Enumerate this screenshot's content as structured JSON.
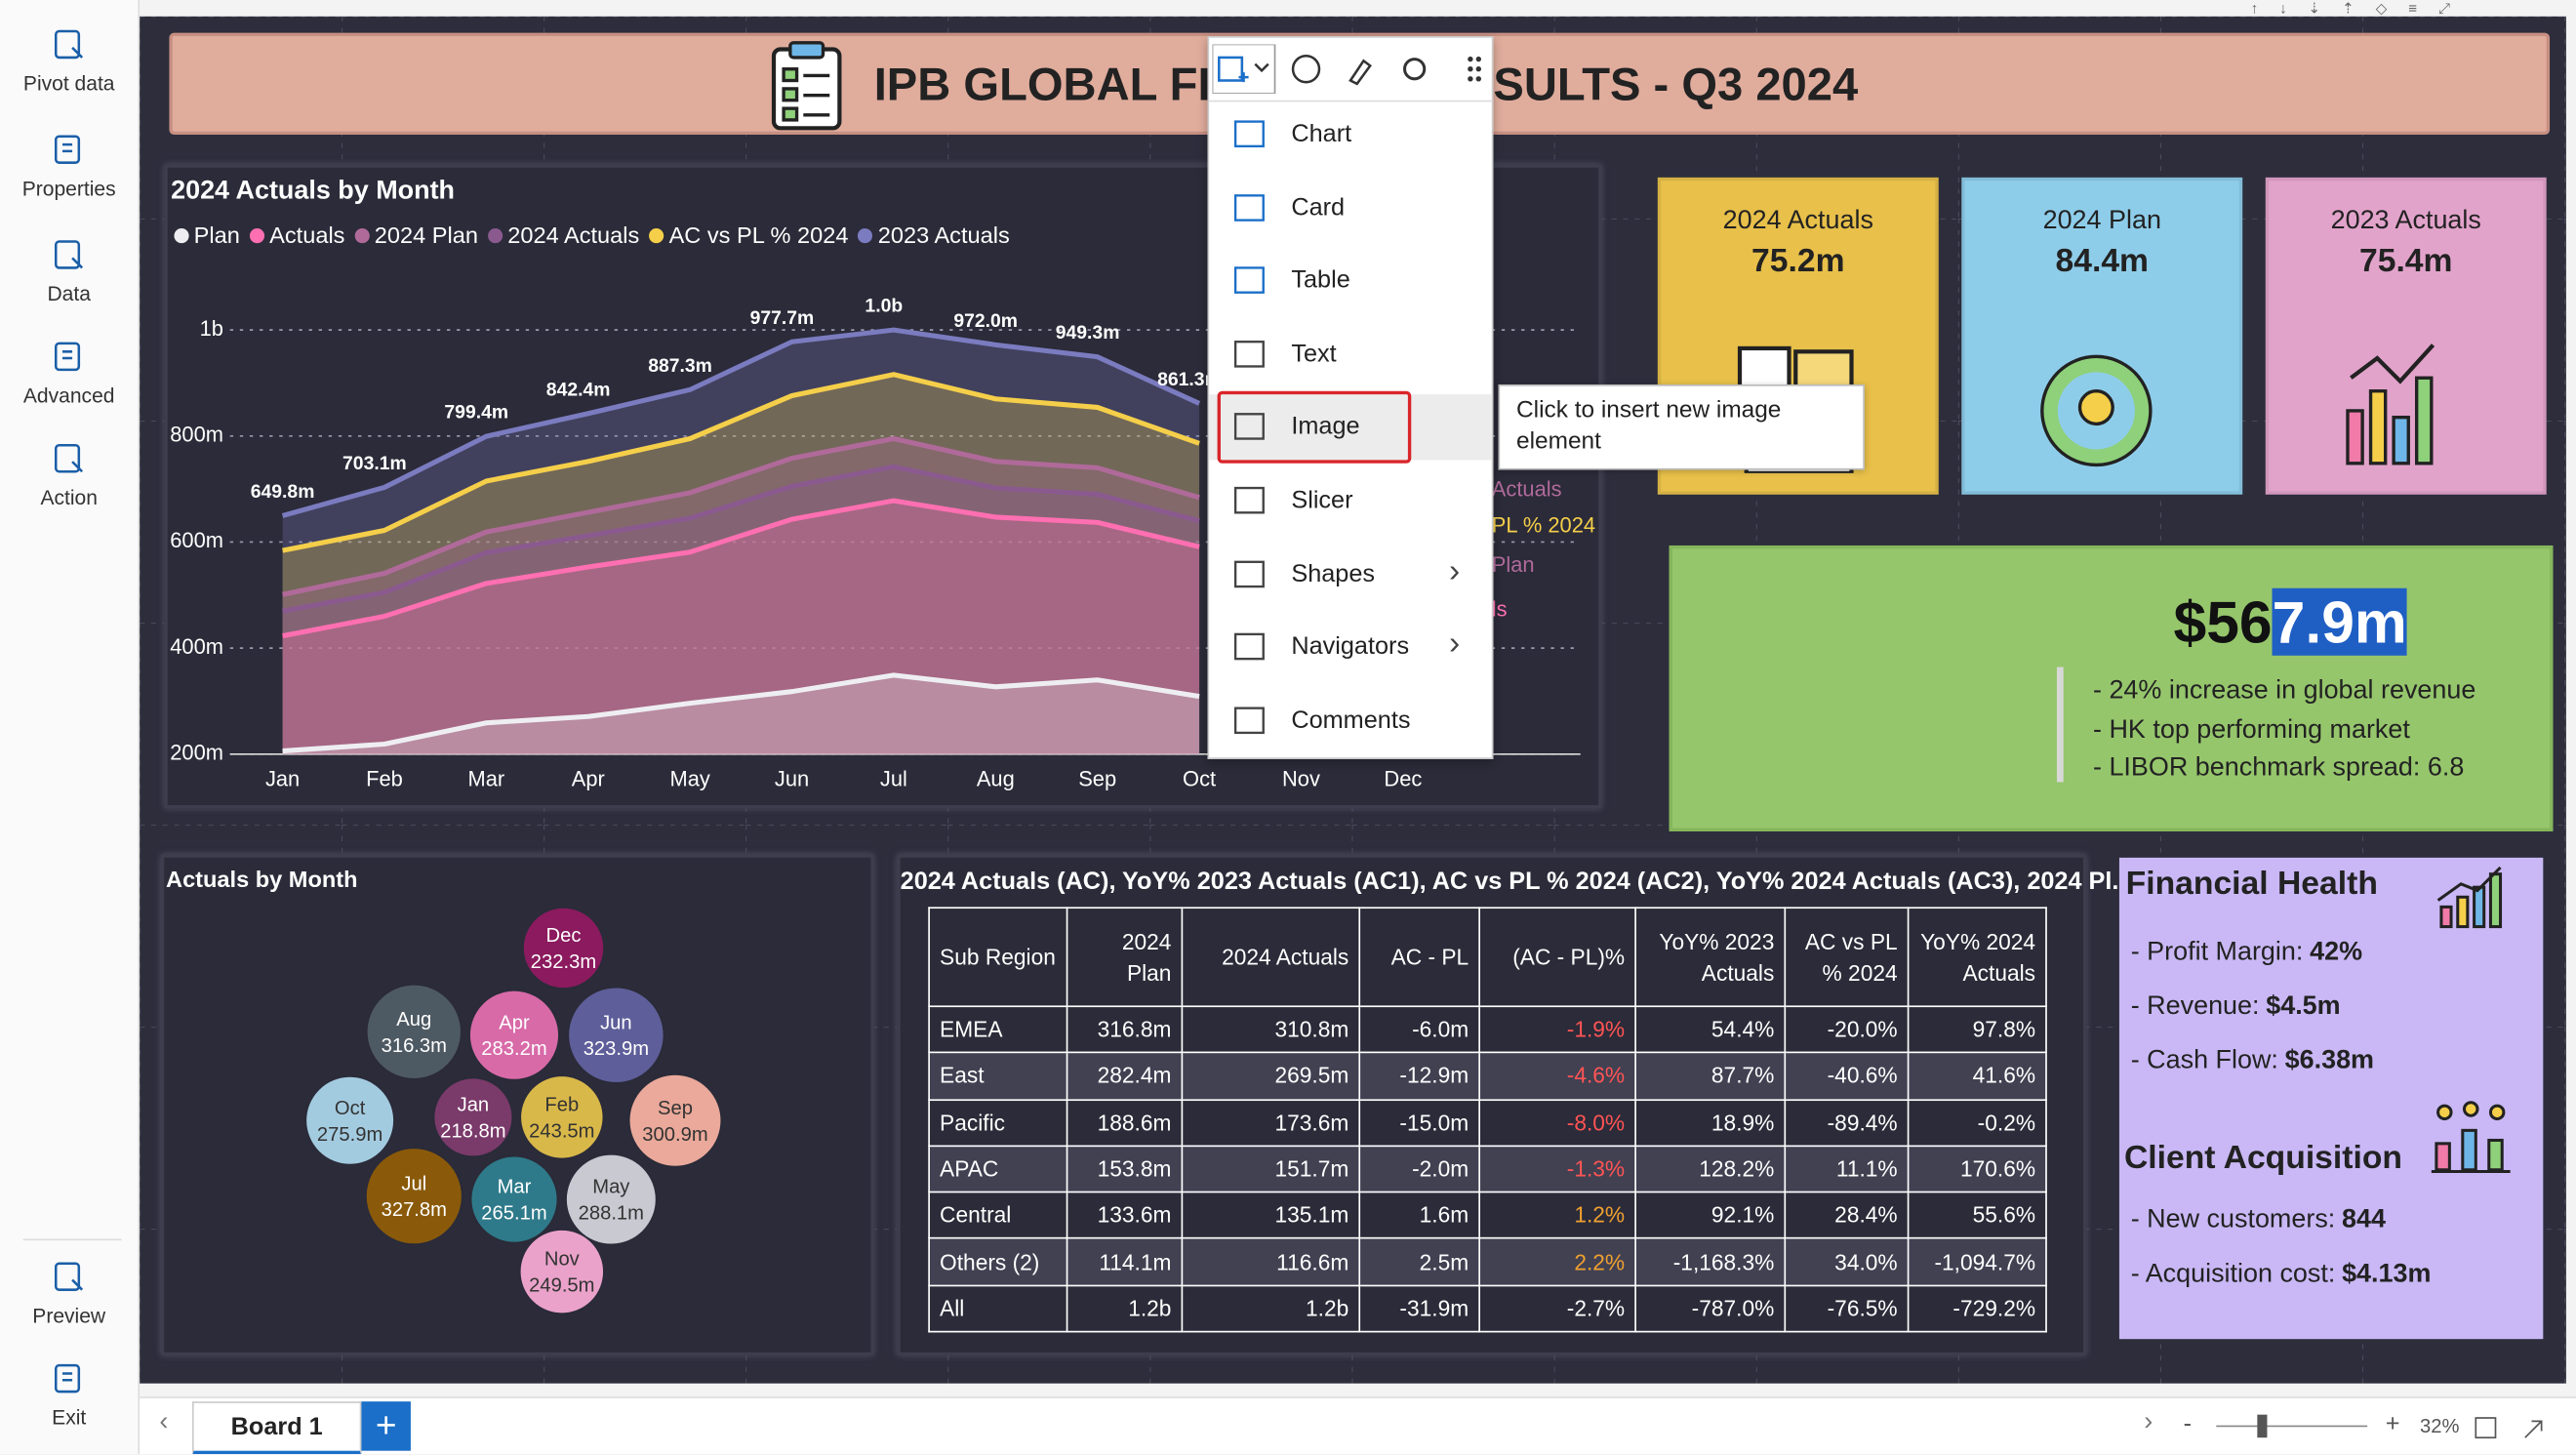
{
  "sidebar": {
    "top": [
      "Pivot data",
      "Properties",
      "Data",
      "Advanced",
      "Action"
    ],
    "bottom": [
      "Preview",
      "Exit"
    ]
  },
  "header": {
    "title": "IPB GLOBAL FINANCIAL RESULTS - Q3 2024"
  },
  "line_chart": {
    "type": "line",
    "title": "2024 Actuals by Month",
    "categories": [
      "Jan",
      "Feb",
      "Mar",
      "Apr",
      "May",
      "Jun",
      "Jul",
      "Aug",
      "Sep",
      "Oct",
      "Nov",
      "Dec"
    ],
    "series": [
      {
        "name": "Plan",
        "color": "#eeeef2",
        "values": [
          206,
          219,
          259,
          271,
          296,
          318,
          349,
          327,
          340,
          309,
          null,
          null
        ]
      },
      {
        "name": "Actuals",
        "color": "#ff6fb1",
        "values": [
          423,
          460,
          522,
          553,
          581,
          643,
          678,
          647,
          637,
          591,
          null,
          null
        ]
      },
      {
        "name": "2024 Plan",
        "color": "#b06a9a",
        "values": [
          501,
          541,
          619,
          656,
          693,
          758,
          795,
          752,
          740,
          684,
          null,
          null
        ]
      },
      {
        "name": "2024 Actuals",
        "color": "#8a5a8f",
        "values": [
          470,
          505,
          580,
          612,
          645,
          705,
          742,
          702,
          690,
          640,
          null,
          null
        ]
      },
      {
        "name": "AC vs PL % 2024",
        "color": "#f5cf4a",
        "values": [
          584,
          622,
          715,
          752,
          795,
          876,
          916,
          870,
          854,
          786,
          null,
          null
        ]
      },
      {
        "name": "2023 Actuals",
        "color": "#7b7bc0",
        "values": [
          649.8,
          703.1,
          799.4,
          842.4,
          887.3,
          977.7,
          1000,
          972.0,
          949.3,
          861.3,
          null,
          null
        ],
        "value_labels": [
          "649.8m",
          "703.1m",
          "799.4m",
          "842.4m",
          "887.3m",
          "977.7m",
          "1.0b",
          "972.0m",
          "949.3m",
          "861.3m",
          null,
          null
        ]
      }
    ],
    "ylim": [
      200,
      1080
    ],
    "yticks": [
      {
        "value": 200,
        "label": "200m"
      },
      {
        "value": 400,
        "label": "400m"
      },
      {
        "value": 600,
        "label": "600m"
      },
      {
        "value": 800,
        "label": "800m"
      },
      {
        "value": 1000,
        "label": "1b"
      }
    ],
    "grid": true
  },
  "side_legend": [
    "Actuals",
    "PL % 2024",
    "Plan",
    "ls"
  ],
  "kpis": [
    {
      "label": "2024 Actuals",
      "value": "75.2m",
      "color": "#e8c04a"
    },
    {
      "label": "2024 Plan",
      "value": "84.4m",
      "color": "#8ecdea"
    },
    {
      "label": "2023 Actuals",
      "value": "75.4m",
      "color": "#e2a3cb"
    }
  ],
  "highlight": {
    "amount_start": "$56",
    "amount_selected": "7.9m",
    "bullets": [
      "- 24% increase in global revenue",
      "- HK top performing market",
      "- LIBOR benchmark spread: 6.8"
    ]
  },
  "bubble_chart": {
    "type": "bubble",
    "title": "Actuals by Month",
    "categories": [
      "Dec",
      "Apr",
      "Jun",
      "Aug",
      "Jan",
      "Feb",
      "Sep",
      "Oct",
      "Jul",
      "Mar",
      "May",
      "Nov"
    ],
    "values": [
      232.3,
      283.2,
      323.9,
      316.3,
      218.8,
      243.5,
      300.9,
      275.9,
      327.8,
      265.1,
      288.1,
      249.5
    ],
    "value_labels": [
      "232.3m",
      "283.2m",
      "323.9m",
      "316.3m",
      "218.8m",
      "243.5m",
      "300.9m",
      "275.9m",
      "327.8m",
      "265.1m",
      "288.1m",
      "249.5m"
    ],
    "colors": [
      "#8b1a5e",
      "#d86aa8",
      "#5e5e9a",
      "#4e5a63",
      "#7a3a6a",
      "#d9b84a",
      "#eaa99a",
      "#a3cbe0",
      "#8a5a0a",
      "#2e7a8a",
      "#c9c9d2",
      "#eaa2ca"
    ]
  },
  "table": {
    "title": "2024 Actuals (AC), YoY% 2023 Actuals (AC1), AC vs PL % 2024 (AC2), YoY% 2024 Actuals (AC3), 2024 Pl...",
    "columns": [
      "Sub Region",
      "2024 Plan",
      "2024 Actuals",
      "AC - PL",
      "(AC - PL)%",
      "YoY% 2023 Actuals",
      "AC vs PL % 2024",
      "YoY% 2024 Actuals"
    ],
    "rows": [
      [
        "EMEA",
        "316.8m",
        "310.8m",
        "-6.0m",
        "-1.9%",
        "54.4%",
        "-20.0%",
        "97.8%"
      ],
      [
        "East",
        "282.4m",
        "269.5m",
        "-12.9m",
        "-4.6%",
        "87.7%",
        "-40.6%",
        "41.6%"
      ],
      [
        "Pacific",
        "188.6m",
        "173.6m",
        "-15.0m",
        "-8.0%",
        "18.9%",
        "-89.4%",
        "-0.2%"
      ],
      [
        "APAC",
        "153.8m",
        "151.7m",
        "-2.0m",
        "-1.3%",
        "128.2%",
        "11.1%",
        "170.6%"
      ],
      [
        "Central",
        "133.6m",
        "135.1m",
        "1.6m",
        "1.2%",
        "92.1%",
        "28.4%",
        "55.6%"
      ],
      [
        "Others (2)",
        "114.1m",
        "116.6m",
        "2.5m",
        "2.2%",
        "-1,168.3%",
        "34.0%",
        "-1,094.7%"
      ]
    ],
    "total": [
      "All",
      "1.2b",
      "1.2b",
      "-31.9m",
      "-2.7%",
      "-787.0%",
      "-76.5%",
      "-729.2%"
    ]
  },
  "health": {
    "title": "Financial Health",
    "items": [
      {
        "label": "- Profit Margin:",
        "value": "42%"
      },
      {
        "label": "- Revenue:",
        "value": "$4.5m"
      },
      {
        "label": "- Cash Flow:",
        "value": "$6.38m"
      }
    ],
    "title2": "Client Acquisition",
    "items2": [
      {
        "label": "- New customers:",
        "value": "844"
      },
      {
        "label": "- Acquisition cost:",
        "value": "$4.13m"
      }
    ]
  },
  "menu": {
    "items": [
      "Chart",
      "Card",
      "Table",
      "Text",
      "Image",
      "Slicer",
      "Shapes",
      "Navigators",
      "Comments"
    ],
    "tooltip": "Click to insert new image element"
  },
  "footer": {
    "tab": "Board 1",
    "zoom": "32%"
  }
}
